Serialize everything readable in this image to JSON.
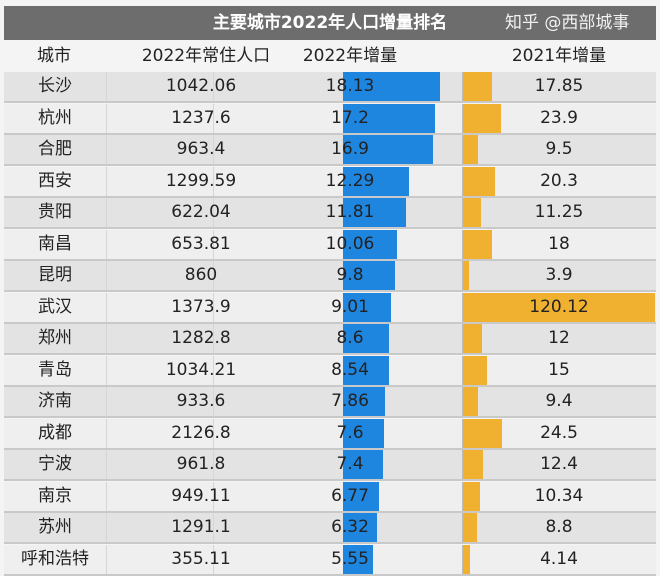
{
  "chart_data": {
    "type": "table",
    "title": "主要城市2022年人口增量排名",
    "columns": [
      "城市",
      "2022年常住人口",
      "2022年增量",
      "2021年增量"
    ],
    "rows": [
      {
        "city": "长沙",
        "pop": "1042.06",
        "inc2022": 18.13,
        "inc2021": 17.85
      },
      {
        "city": "杭州",
        "pop": "1237.6",
        "inc2022": 17.2,
        "inc2021": 23.9
      },
      {
        "city": "合肥",
        "pop": "963.4",
        "inc2022": 16.9,
        "inc2021": 9.5
      },
      {
        "city": "西安",
        "pop": "1299.59",
        "inc2022": 12.29,
        "inc2021": 20.3
      },
      {
        "city": "贵阳",
        "pop": "622.04",
        "inc2022": 11.81,
        "inc2021": 11.25
      },
      {
        "city": "南昌",
        "pop": "653.81",
        "inc2022": 10.06,
        "inc2021": 18
      },
      {
        "city": "昆明",
        "pop": "860",
        "inc2022": 9.8,
        "inc2021": 3.9
      },
      {
        "city": "武汉",
        "pop": "1373.9",
        "inc2022": 9.01,
        "inc2021": 120.12
      },
      {
        "city": "郑州",
        "pop": "1282.8",
        "inc2022": 8.6,
        "inc2021": 12
      },
      {
        "city": "青岛",
        "pop": "1034.21",
        "inc2022": 8.54,
        "inc2021": 15
      },
      {
        "city": "济南",
        "pop": "933.6",
        "inc2022": 7.86,
        "inc2021": 9.4
      },
      {
        "city": "成都",
        "pop": "2126.8",
        "inc2022": 7.6,
        "inc2021": 24.5
      },
      {
        "city": "宁波",
        "pop": "961.8",
        "inc2022": 7.4,
        "inc2021": 12.4
      },
      {
        "city": "南京",
        "pop": "949.11",
        "inc2022": 6.77,
        "inc2021": 10.34
      },
      {
        "city": "苏州",
        "pop": "1291.1",
        "inc2022": 6.32,
        "inc2021": 8.8
      },
      {
        "city": "呼和浩特",
        "pop": "355.11",
        "inc2022": 5.55,
        "inc2021": 4.14
      }
    ],
    "colors": {
      "inc2022": "#1f86e0",
      "inc2021": "#f0b030",
      "header": "#6d6d6d"
    }
  },
  "watermark": "知乎 @西部城事"
}
